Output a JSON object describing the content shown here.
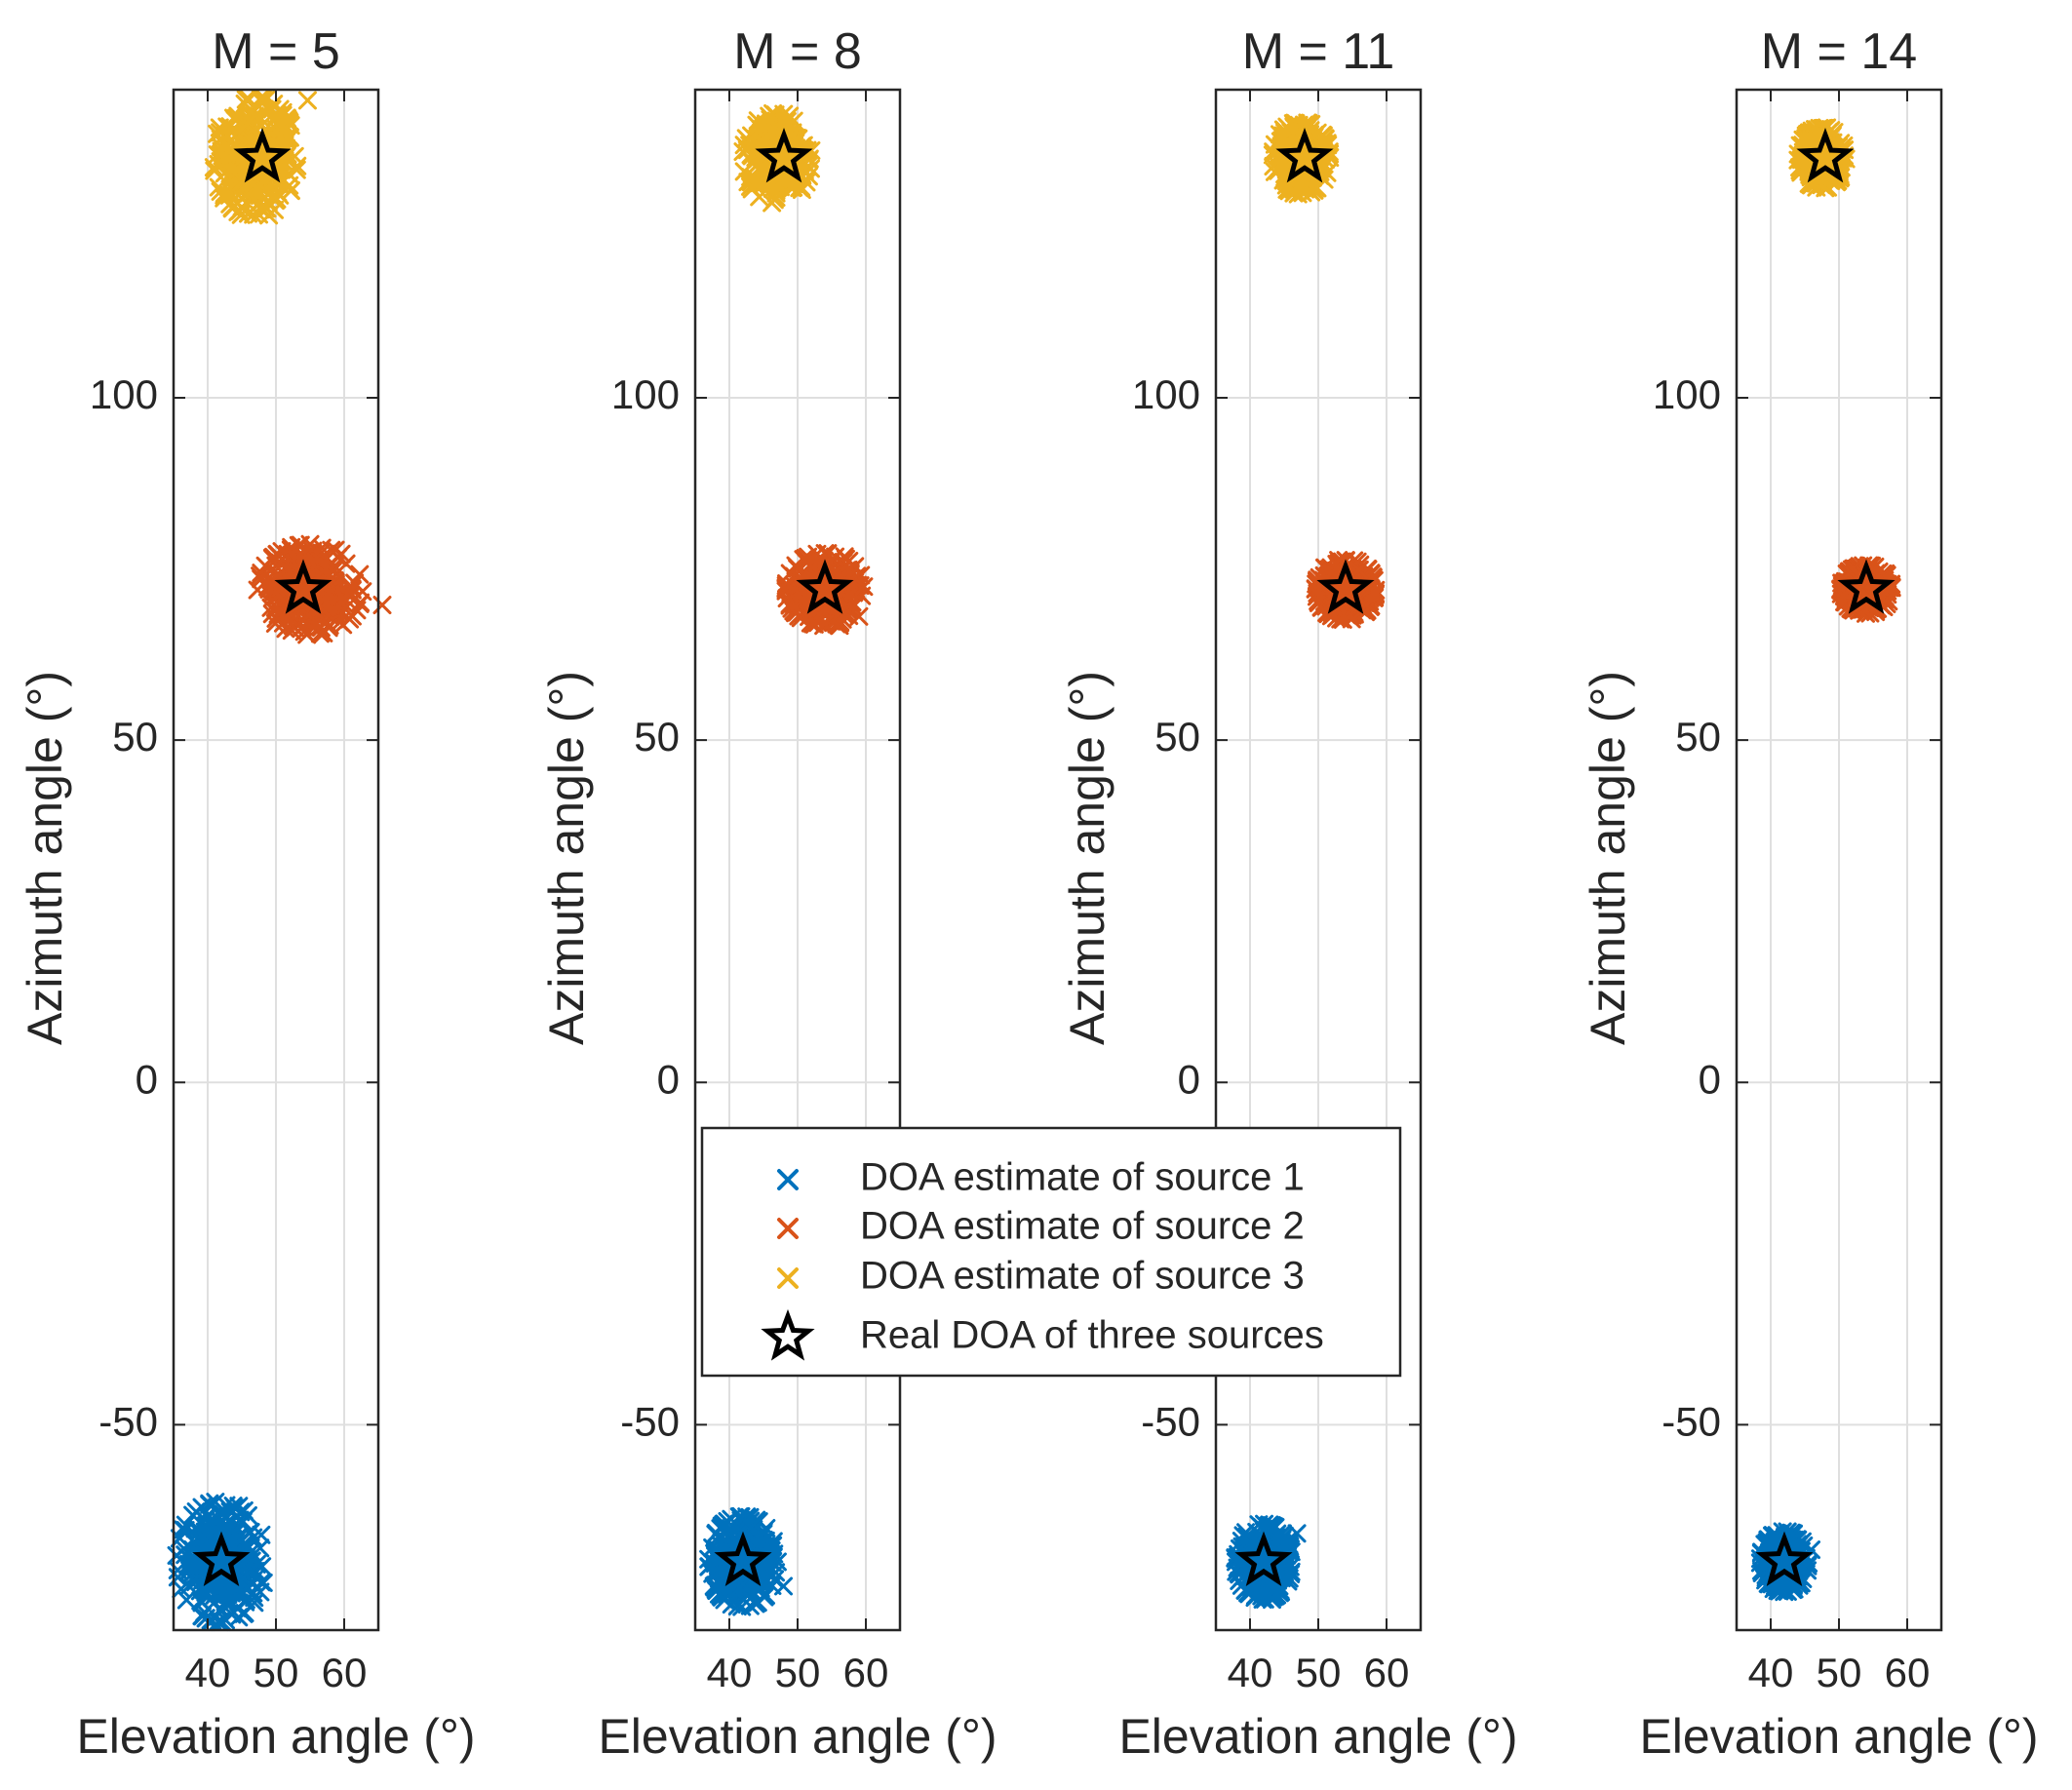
{
  "chart_data": {
    "type": "scatter",
    "colors": {
      "source1": "#0072BD",
      "source2": "#D95319",
      "source3": "#EDB120",
      "real": "#000000"
    },
    "legend": {
      "placement": "center",
      "entries": [
        {
          "label": "DOA estimate of source 1",
          "marker": "x",
          "color": "#0072BD"
        },
        {
          "label": "DOA estimate of source 2",
          "marker": "x",
          "color": "#D95319"
        },
        {
          "label": "DOA estimate of source 3",
          "marker": "x",
          "color": "#EDB120"
        },
        {
          "label": "Real DOA of three sources",
          "marker": "pentagram",
          "color": "#000000"
        }
      ]
    },
    "panels": [
      {
        "title": "M = 5",
        "xlabel": "Elevation angle (°)",
        "ylabel": "Azimuth angle (°)",
        "xlim": [
          35,
          65
        ],
        "ylim": [
          -80,
          145
        ],
        "xticks": [
          40,
          50,
          60
        ],
        "xtick_labels": [
          "40",
          "50",
          "60"
        ],
        "yticks": [
          -50,
          0,
          50,
          100
        ],
        "ytick_labels": [
          "-50",
          "0",
          "50",
          "100"
        ],
        "grid": true,
        "real_doa": [
          {
            "x": 42,
            "y": -70
          },
          {
            "x": 54,
            "y": 72
          },
          {
            "x": 48,
            "y": 135
          }
        ],
        "clusters": [
          {
            "source": 1,
            "center": [
              42,
              -70
            ],
            "spread": [
              3.0,
              4.0
            ]
          },
          {
            "source": 2,
            "center": [
              55,
              72
            ],
            "spread": [
              3.5,
              3.0
            ]
          },
          {
            "source": 3,
            "center": [
              47,
              135
            ],
            "spread": [
              2.8,
              4.0
            ]
          }
        ]
      },
      {
        "title": "M = 8",
        "xlabel": "Elevation angle (°)",
        "ylabel": "Azimuth angle (°)",
        "xlim": [
          35,
          65
        ],
        "ylim": [
          -80,
          145
        ],
        "xticks": [
          40,
          50,
          60
        ],
        "xtick_labels": [
          "40",
          "50",
          "60"
        ],
        "yticks": [
          -50,
          0,
          50,
          100
        ],
        "ytick_labels": [
          "-50",
          "0",
          "50",
          "100"
        ],
        "grid": true,
        "real_doa": [
          {
            "x": 42,
            "y": -70
          },
          {
            "x": 54,
            "y": 72
          },
          {
            "x": 48,
            "y": 135
          }
        ],
        "clusters": [
          {
            "source": 1,
            "center": [
              42,
              -70
            ],
            "spread": [
              2.3,
              3.0
            ]
          },
          {
            "source": 2,
            "center": [
              54,
              72
            ],
            "spread": [
              2.6,
              2.4
            ]
          },
          {
            "source": 3,
            "center": [
              47,
              135
            ],
            "spread": [
              2.3,
              3.0
            ]
          }
        ]
      },
      {
        "title": "M = 11",
        "xlabel": "Elevation angle (°)",
        "ylabel": "Azimuth angle (°)",
        "xlim": [
          35,
          65
        ],
        "ylim": [
          -80,
          145
        ],
        "xticks": [
          40,
          50,
          60
        ],
        "xtick_labels": [
          "40",
          "50",
          "60"
        ],
        "yticks": [
          -50,
          0,
          50,
          100
        ],
        "ytick_labels": [
          "-50",
          "0",
          "50",
          "100"
        ],
        "grid": true,
        "real_doa": [
          {
            "x": 42,
            "y": -70
          },
          {
            "x": 54,
            "y": 72
          },
          {
            "x": 48,
            "y": 135
          }
        ],
        "clusters": [
          {
            "source": 1,
            "center": [
              42,
              -70
            ],
            "spread": [
              1.9,
              2.5
            ]
          },
          {
            "source": 2,
            "center": [
              54,
              72
            ],
            "spread": [
              2.0,
              2.0
            ]
          },
          {
            "source": 3,
            "center": [
              47.5,
              135
            ],
            "spread": [
              1.9,
              2.4
            ]
          }
        ]
      },
      {
        "title": "M = 14",
        "xlabel": "Elevation angle (°)",
        "ylabel": "Azimuth angle (°)",
        "xlim": [
          35,
          65
        ],
        "ylim": [
          -80,
          145
        ],
        "xticks": [
          40,
          50,
          60
        ],
        "xtick_labels": [
          "40",
          "50",
          "60"
        ],
        "yticks": [
          -50,
          0,
          50,
          100
        ],
        "ytick_labels": [
          "-50",
          "0",
          "50",
          "100"
        ],
        "grid": true,
        "real_doa": [
          {
            "x": 42,
            "y": -70
          },
          {
            "x": 54,
            "y": 72
          },
          {
            "x": 48,
            "y": 135
          }
        ],
        "clusters": [
          {
            "source": 1,
            "center": [
              42,
              -70
            ],
            "spread": [
              1.6,
              2.0
            ]
          },
          {
            "source": 2,
            "center": [
              54,
              72
            ],
            "spread": [
              1.7,
              1.6
            ]
          },
          {
            "source": 3,
            "center": [
              47.5,
              135
            ],
            "spread": [
              1.6,
              2.0
            ]
          }
        ]
      }
    ]
  }
}
